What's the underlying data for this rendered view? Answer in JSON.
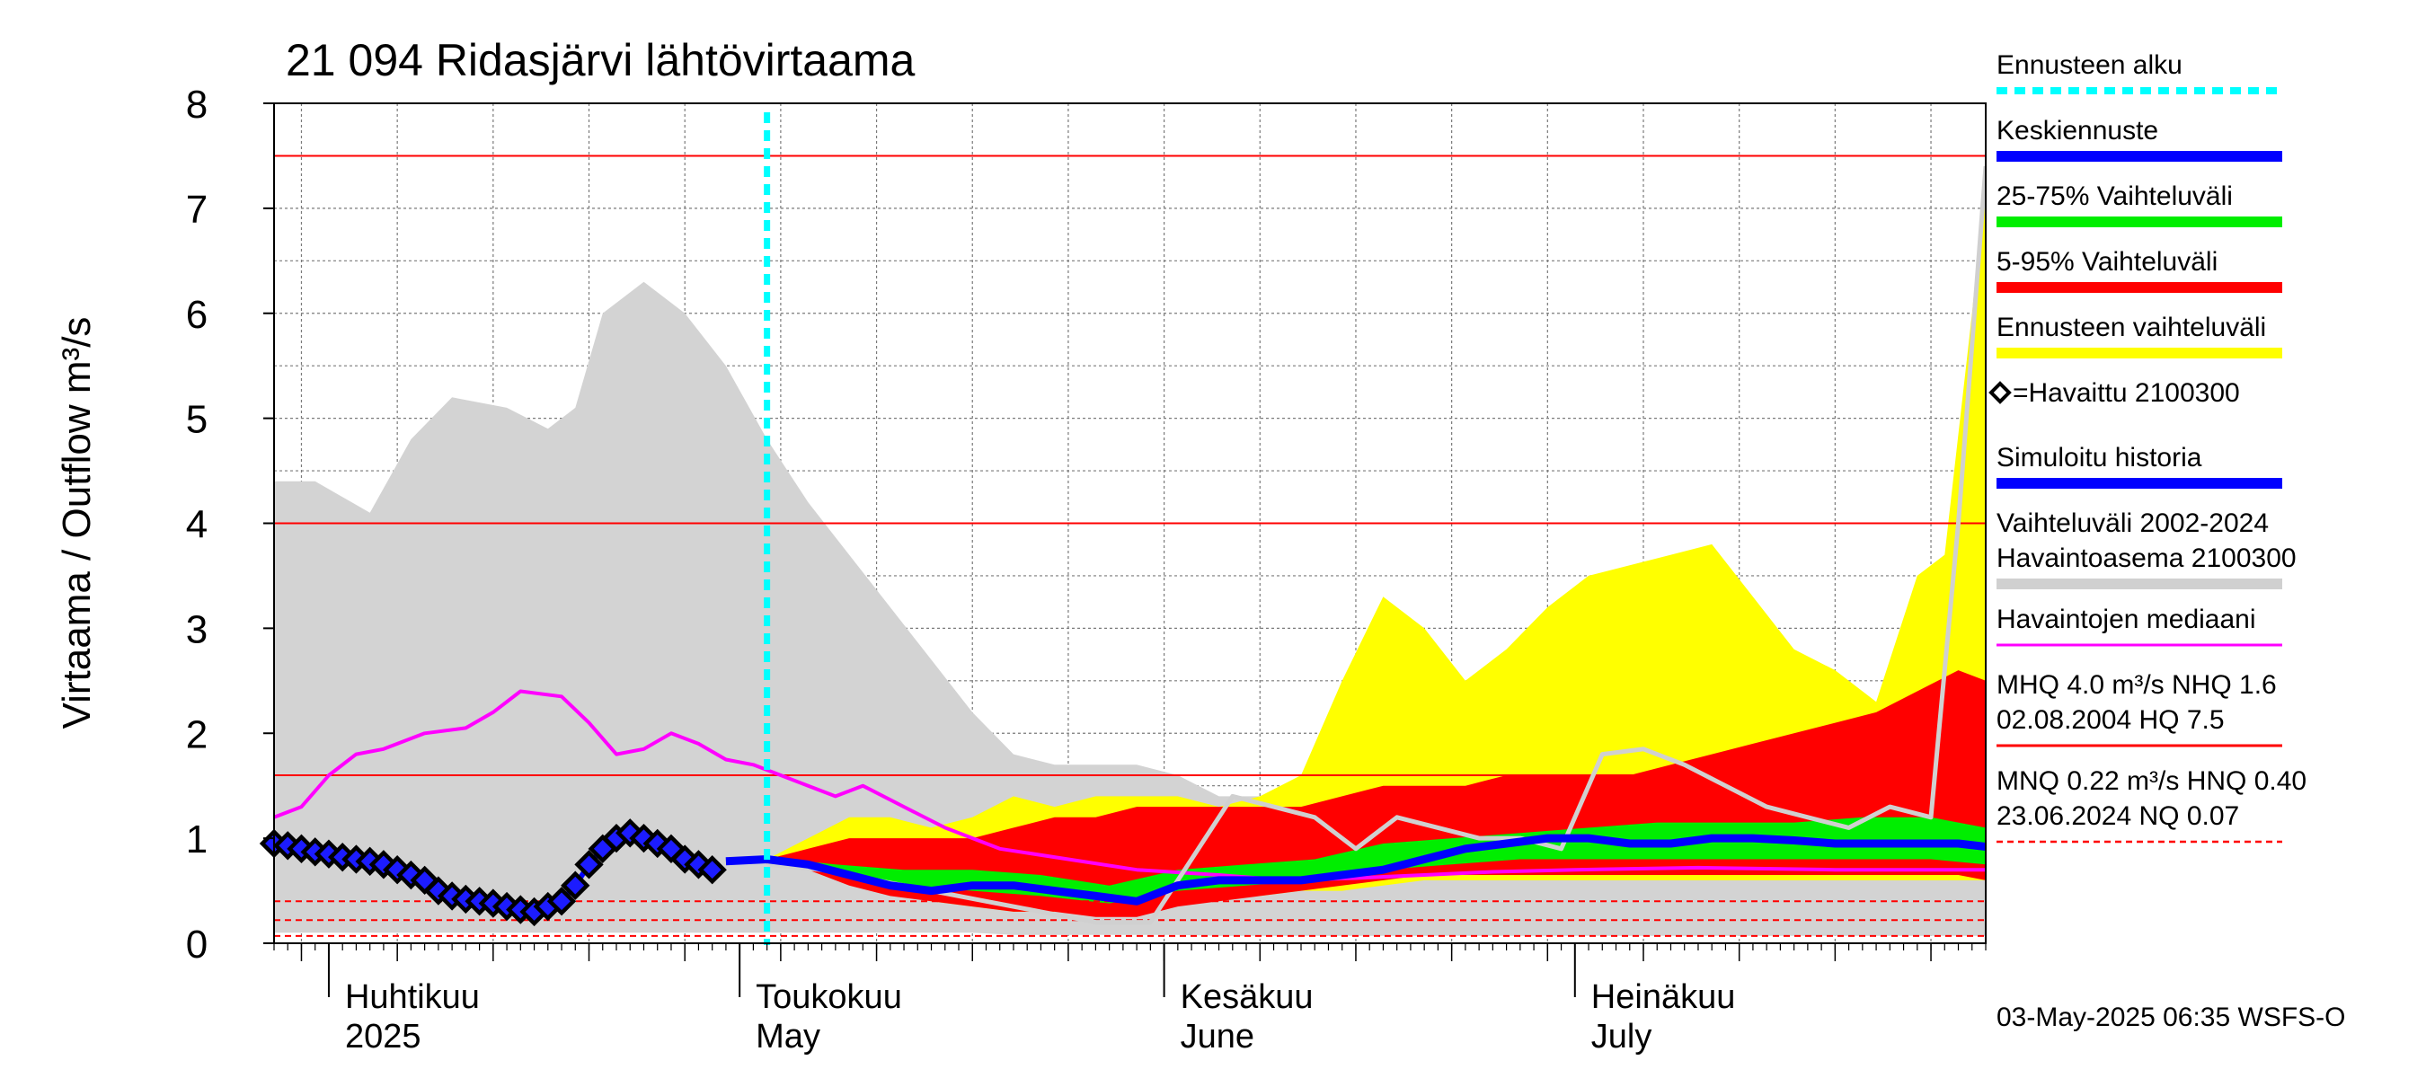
{
  "chart_data": {
    "type": "area",
    "title": "21 094 Ridasjärvi lähtövirtaama",
    "ylabel": "Virtaama / Outflow    m³/s",
    "ylim": [
      0,
      8
    ],
    "yticks": [
      "0",
      "1",
      "2",
      "3",
      "4",
      "5",
      "6",
      "7",
      "8"
    ],
    "xlim": [
      "2025-03-28",
      "2025-07-31"
    ],
    "grid": true,
    "month_labels": [
      {
        "top": "Huhtikuu",
        "bottom": "2025",
        "date": "2025-04-01"
      },
      {
        "top": "Toukokuu",
        "bottom": "May",
        "date": "2025-05-01"
      },
      {
        "top": "Kesäkuu",
        "bottom": "June",
        "date": "2025-06-01"
      },
      {
        "top": "Heinäkuu",
        "bottom": "July",
        "date": "2025-07-01"
      }
    ],
    "forecast_start": "2025-05-03",
    "reference_lines": [
      {
        "value": 7.5,
        "style": "solid"
      },
      {
        "value": 4.0,
        "style": "solid"
      },
      {
        "value": 1.6,
        "style": "solid"
      },
      {
        "value": 0.4,
        "style": "dashed"
      },
      {
        "value": 0.22,
        "style": "dashed"
      },
      {
        "value": 0.07,
        "style": "dashed"
      }
    ],
    "series": [
      {
        "name": "Vaihteluväli 2002-2024 Havaintoasema 2100300",
        "kind": "band",
        "x": [
          "2025-03-28",
          "2025-03-31",
          "2025-04-04",
          "2025-04-07",
          "2025-04-10",
          "2025-04-14",
          "2025-04-17",
          "2025-04-19",
          "2025-04-21",
          "2025-04-24",
          "2025-04-27",
          "2025-04-30",
          "2025-05-03",
          "2025-05-06",
          "2025-05-09",
          "2025-05-12",
          "2025-05-15",
          "2025-05-18",
          "2025-05-21",
          "2025-05-24",
          "2025-05-27",
          "2025-05-30",
          "2025-06-02",
          "2025-06-05",
          "2025-06-10",
          "2025-06-15",
          "2025-06-20",
          "2025-06-25",
          "2025-06-30",
          "2025-07-05",
          "2025-07-10",
          "2025-07-15",
          "2025-07-20",
          "2025-07-25",
          "2025-07-31"
        ],
        "low": [
          0.1,
          0.1,
          0.1,
          0.1,
          0.1,
          0.1,
          0.1,
          0.1,
          0.1,
          0.1,
          0.1,
          0.1,
          0.1,
          0.1,
          0.1,
          0.1,
          0.1,
          0.1,
          0.08,
          0.08,
          0.08,
          0.08,
          0.08,
          0.07,
          0.07,
          0.07,
          0.07,
          0.07,
          0.07,
          0.07,
          0.07,
          0.07,
          0.07,
          0.07,
          0.07
        ],
        "high": [
          4.4,
          4.4,
          4.1,
          4.8,
          5.2,
          5.1,
          4.9,
          5.1,
          6.0,
          6.3,
          6.0,
          5.5,
          4.8,
          4.2,
          3.7,
          3.2,
          2.7,
          2.2,
          1.8,
          1.7,
          1.7,
          1.7,
          1.6,
          1.4,
          1.4,
          1.3,
          1.3,
          1.2,
          1.2,
          1.2,
          1.2,
          1.1,
          1.1,
          1.0,
          1.0
        ]
      },
      {
        "name": "Ennusteen vaihteluväli",
        "kind": "band",
        "x": [
          "2025-05-03",
          "2025-05-06",
          "2025-05-09",
          "2025-05-12",
          "2025-05-15",
          "2025-05-18",
          "2025-05-21",
          "2025-05-24",
          "2025-05-27",
          "2025-05-30",
          "2025-06-02",
          "2025-06-05",
          "2025-06-08",
          "2025-06-11",
          "2025-06-14",
          "2025-06-17",
          "2025-06-20",
          "2025-06-23",
          "2025-06-26",
          "2025-06-29",
          "2025-07-02",
          "2025-07-05",
          "2025-07-08",
          "2025-07-11",
          "2025-07-14",
          "2025-07-17",
          "2025-07-20",
          "2025-07-23",
          "2025-07-26",
          "2025-07-28",
          "2025-07-30",
          "2025-07-31"
        ],
        "low": [
          0.75,
          0.7,
          0.6,
          0.5,
          0.4,
          0.35,
          0.3,
          0.3,
          0.3,
          0.3,
          0.4,
          0.45,
          0.45,
          0.5,
          0.5,
          0.55,
          0.6,
          0.6,
          0.6,
          0.6,
          0.6,
          0.6,
          0.6,
          0.6,
          0.6,
          0.6,
          0.6,
          0.6,
          0.6,
          0.6,
          0.6,
          0.6
        ],
        "high": [
          0.8,
          1.0,
          1.2,
          1.2,
          1.1,
          1.2,
          1.4,
          1.3,
          1.4,
          1.4,
          1.4,
          1.3,
          1.4,
          1.6,
          2.5,
          3.3,
          3.0,
          2.5,
          2.8,
          3.2,
          3.5,
          3.6,
          3.7,
          3.8,
          3.3,
          2.8,
          2.6,
          2.3,
          3.5,
          3.7,
          6.0,
          7.4
        ]
      },
      {
        "name": "5-95% Vaihteluväli",
        "kind": "band",
        "x": [
          "2025-05-03",
          "2025-05-06",
          "2025-05-09",
          "2025-05-12",
          "2025-05-15",
          "2025-05-18",
          "2025-05-21",
          "2025-05-24",
          "2025-05-27",
          "2025-05-30",
          "2025-06-02",
          "2025-06-05",
          "2025-06-08",
          "2025-06-11",
          "2025-06-14",
          "2025-06-17",
          "2025-06-20",
          "2025-06-23",
          "2025-06-26",
          "2025-06-29",
          "2025-07-02",
          "2025-07-05",
          "2025-07-08",
          "2025-07-11",
          "2025-07-14",
          "2025-07-17",
          "2025-07-20",
          "2025-07-23",
          "2025-07-26",
          "2025-07-29",
          "2025-07-31"
        ],
        "low": [
          0.75,
          0.7,
          0.55,
          0.45,
          0.4,
          0.35,
          0.3,
          0.3,
          0.25,
          0.25,
          0.35,
          0.4,
          0.45,
          0.5,
          0.55,
          0.6,
          0.65,
          0.65,
          0.65,
          0.65,
          0.65,
          0.65,
          0.65,
          0.65,
          0.65,
          0.65,
          0.65,
          0.65,
          0.65,
          0.65,
          0.6
        ],
        "high": [
          0.8,
          0.9,
          1.0,
          1.0,
          1.0,
          1.0,
          1.1,
          1.2,
          1.2,
          1.3,
          1.3,
          1.3,
          1.3,
          1.3,
          1.4,
          1.5,
          1.5,
          1.5,
          1.6,
          1.6,
          1.6,
          1.6,
          1.7,
          1.8,
          1.9,
          2.0,
          2.1,
          2.2,
          2.4,
          2.6,
          2.5
        ]
      },
      {
        "name": "25-75% Vaihteluväli",
        "kind": "band",
        "x": [
          "2025-05-03",
          "2025-05-08",
          "2025-05-13",
          "2025-05-18",
          "2025-05-23",
          "2025-05-28",
          "2025-06-02",
          "2025-06-07",
          "2025-06-12",
          "2025-06-17",
          "2025-06-22",
          "2025-06-27",
          "2025-07-02",
          "2025-07-07",
          "2025-07-12",
          "2025-07-17",
          "2025-07-22",
          "2025-07-27",
          "2025-07-31"
        ],
        "low": [
          0.78,
          0.68,
          0.55,
          0.5,
          0.45,
          0.38,
          0.5,
          0.55,
          0.6,
          0.7,
          0.75,
          0.8,
          0.8,
          0.8,
          0.8,
          0.8,
          0.8,
          0.8,
          0.75
        ],
        "high": [
          0.82,
          0.75,
          0.7,
          0.7,
          0.65,
          0.55,
          0.7,
          0.75,
          0.8,
          0.95,
          1.0,
          1.05,
          1.1,
          1.15,
          1.15,
          1.15,
          1.2,
          1.2,
          1.1
        ]
      },
      {
        "name": "Havaintojen mediaani",
        "kind": "line",
        "color": "#ff00ff",
        "x": [
          "2025-03-28",
          "2025-03-30",
          "2025-04-01",
          "2025-04-03",
          "2025-04-05",
          "2025-04-08",
          "2025-04-11",
          "2025-04-13",
          "2025-04-15",
          "2025-04-18",
          "2025-04-20",
          "2025-04-22",
          "2025-04-24",
          "2025-04-26",
          "2025-04-28",
          "2025-04-30",
          "2025-05-02",
          "2025-05-04",
          "2025-05-06",
          "2025-05-08",
          "2025-05-10",
          "2025-05-13",
          "2025-05-16",
          "2025-05-20",
          "2025-05-25",
          "2025-05-30",
          "2025-06-05",
          "2025-06-10",
          "2025-06-15",
          "2025-06-20",
          "2025-06-25",
          "2025-07-01",
          "2025-07-10",
          "2025-07-20",
          "2025-07-31"
        ],
        "y": [
          1.2,
          1.3,
          1.6,
          1.8,
          1.85,
          2.0,
          2.05,
          2.2,
          2.4,
          2.35,
          2.1,
          1.8,
          1.85,
          2.0,
          1.9,
          1.75,
          1.7,
          1.6,
          1.5,
          1.4,
          1.5,
          1.3,
          1.1,
          0.9,
          0.8,
          0.7,
          0.65,
          0.6,
          0.62,
          0.65,
          0.68,
          0.7,
          0.72,
          0.7,
          0.7
        ]
      },
      {
        "name": "Simuloitu historia",
        "kind": "line",
        "color": "#d0d0d0",
        "x": [
          "2025-05-03",
          "2025-05-07",
          "2025-05-11",
          "2025-05-15",
          "2025-05-19",
          "2025-05-23",
          "2025-05-27",
          "2025-05-31",
          "2025-06-03",
          "2025-06-06",
          "2025-06-09",
          "2025-06-12",
          "2025-06-15",
          "2025-06-18",
          "2025-06-21",
          "2025-06-24",
          "2025-06-27",
          "2025-06-30",
          "2025-07-03",
          "2025-07-06",
          "2025-07-09",
          "2025-07-12",
          "2025-07-15",
          "2025-07-18",
          "2025-07-21",
          "2025-07-24",
          "2025-07-27",
          "2025-07-29",
          "2025-07-31"
        ],
        "y": [
          0.75,
          0.7,
          0.6,
          0.5,
          0.4,
          0.3,
          0.2,
          0.2,
          0.8,
          1.4,
          1.3,
          1.2,
          0.9,
          1.2,
          1.1,
          1.0,
          1.0,
          0.9,
          1.8,
          1.85,
          1.7,
          1.5,
          1.3,
          1.2,
          1.1,
          1.3,
          1.2,
          4.0,
          7.4
        ]
      },
      {
        "name": "Keskiennuste",
        "kind": "line",
        "color": "#0000ff",
        "x": [
          "2025-04-30",
          "2025-05-03",
          "2025-05-06",
          "2025-05-09",
          "2025-05-12",
          "2025-05-15",
          "2025-05-18",
          "2025-05-21",
          "2025-05-24",
          "2025-05-27",
          "2025-05-30",
          "2025-06-02",
          "2025-06-05",
          "2025-06-08",
          "2025-06-11",
          "2025-06-14",
          "2025-06-17",
          "2025-06-20",
          "2025-06-23",
          "2025-06-26",
          "2025-06-29",
          "2025-07-02",
          "2025-07-05",
          "2025-07-08",
          "2025-07-11",
          "2025-07-14",
          "2025-07-17",
          "2025-07-20",
          "2025-07-23",
          "2025-07-26",
          "2025-07-29",
          "2025-07-31"
        ],
        "y": [
          0.78,
          0.8,
          0.75,
          0.65,
          0.55,
          0.5,
          0.55,
          0.55,
          0.5,
          0.45,
          0.4,
          0.55,
          0.6,
          0.6,
          0.6,
          0.65,
          0.7,
          0.8,
          0.9,
          0.95,
          1.0,
          1.0,
          0.95,
          0.95,
          1.0,
          1.0,
          0.98,
          0.95,
          0.95,
          0.95,
          0.95,
          0.92
        ]
      },
      {
        "name": "=Havaittu 2100300",
        "kind": "markers",
        "x": [
          "2025-03-28",
          "2025-03-29",
          "2025-03-30",
          "2025-03-31",
          "2025-04-01",
          "2025-04-02",
          "2025-04-03",
          "2025-04-04",
          "2025-04-05",
          "2025-04-06",
          "2025-04-07",
          "2025-04-08",
          "2025-04-09",
          "2025-04-10",
          "2025-04-11",
          "2025-04-12",
          "2025-04-13",
          "2025-04-14",
          "2025-04-15",
          "2025-04-16",
          "2025-04-17",
          "2025-04-18",
          "2025-04-19",
          "2025-04-20",
          "2025-04-21",
          "2025-04-22",
          "2025-04-23",
          "2025-04-24",
          "2025-04-25",
          "2025-04-26",
          "2025-04-27",
          "2025-04-28",
          "2025-04-29"
        ],
        "y": [
          0.95,
          0.93,
          0.9,
          0.87,
          0.85,
          0.82,
          0.8,
          0.78,
          0.75,
          0.7,
          0.65,
          0.6,
          0.5,
          0.45,
          0.42,
          0.4,
          0.38,
          0.35,
          0.32,
          0.3,
          0.35,
          0.4,
          0.55,
          0.75,
          0.9,
          1.0,
          1.05,
          1.0,
          0.95,
          0.9,
          0.8,
          0.75,
          0.7
        ]
      }
    ],
    "legend": [
      {
        "label": "Ennusteen alku",
        "swatch": "dotted",
        "color": "#00ffff"
      },
      {
        "label": "Keskiennuste",
        "swatch": "bar",
        "color": "#0000ff"
      },
      {
        "label": "25-75% Vaihteluväli",
        "swatch": "bar",
        "color": "#00ee00"
      },
      {
        "label": "5-95% Vaihteluväli",
        "swatch": "bar",
        "color": "#ff0000"
      },
      {
        "label": "Ennusteen vaihteluväli",
        "swatch": "bar",
        "color": "#ffff00"
      },
      {
        "label": "=Havaittu 2100300",
        "swatch": "diamond",
        "color": "#000000"
      },
      {
        "label": "Simuloitu historia",
        "swatch": "bar",
        "color": "#0000ff"
      },
      {
        "label": "Vaihteluväli 2002-2024",
        "label2": " Havaintoasema 2100300",
        "swatch": "bar",
        "color": "#d0d0d0"
      },
      {
        "label": "Havaintojen mediaani",
        "swatch": "thin",
        "color": "#ff00ff"
      },
      {
        "label": "MHQ  4.0 m³/s NHQ  1.6",
        "label2": "02.08.2004 HQ  7.5",
        "swatch": "thin",
        "color": "#ff0000"
      },
      {
        "label": "MNQ 0.22 m³/s HNQ 0.40",
        "label2": "23.06.2024 NQ 0.07",
        "swatch": "dashed",
        "color": "#ff0000"
      }
    ],
    "footer": "03-May-2025 06:35 WSFS-O"
  }
}
